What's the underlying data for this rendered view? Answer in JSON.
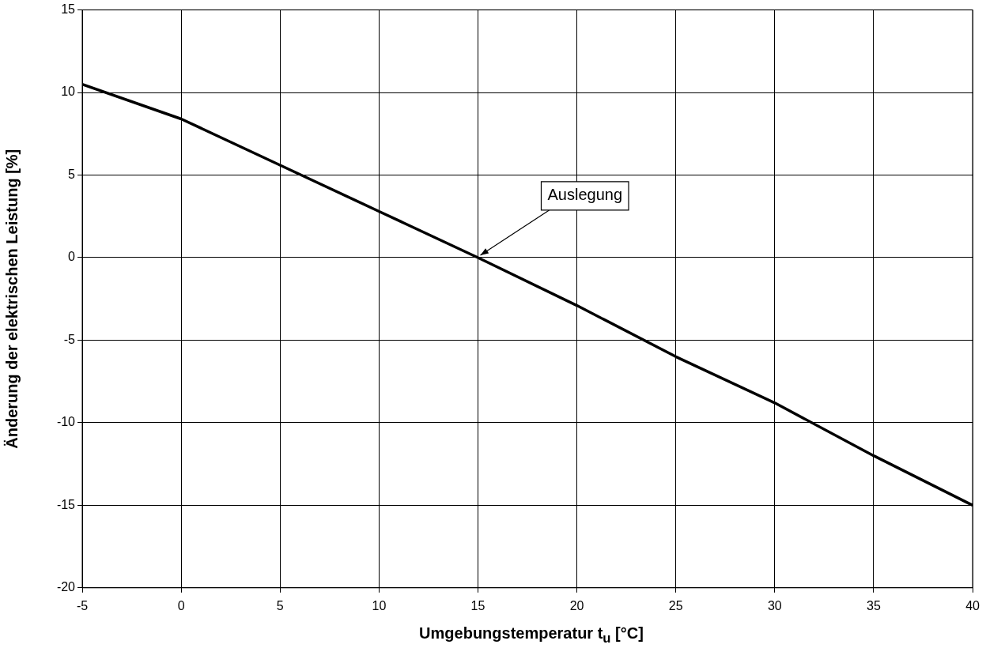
{
  "chart_data": {
    "type": "line",
    "xlabel": "Umgebungstemperatur   t$_{u}$ [°C]",
    "ylabel": "Änderung der elektrischen Leistung [%]",
    "x": [
      -5,
      0,
      5,
      10,
      15,
      20,
      25,
      30,
      35,
      40
    ],
    "series": [
      {
        "color": "#000000",
        "values": [
          10.5,
          8.4,
          5.6,
          2.8,
          0,
          -2.9,
          -6.0,
          -8.8,
          -12.0,
          -15.0
        ]
      }
    ],
    "xlim": [
      -5,
      40
    ],
    "xticks": [
      -5,
      0,
      5,
      10,
      15,
      20,
      25,
      30,
      35,
      40
    ],
    "ylim": [
      -20,
      15
    ],
    "yticks": [
      -20,
      -15,
      -10,
      -5,
      0,
      5,
      10,
      15
    ],
    "grid": true,
    "legend": false,
    "marker": "none",
    "line_style": "solid",
    "annotations": [
      {
        "text": "Auslegung",
        "x": 15,
        "y": 0
      }
    ]
  }
}
